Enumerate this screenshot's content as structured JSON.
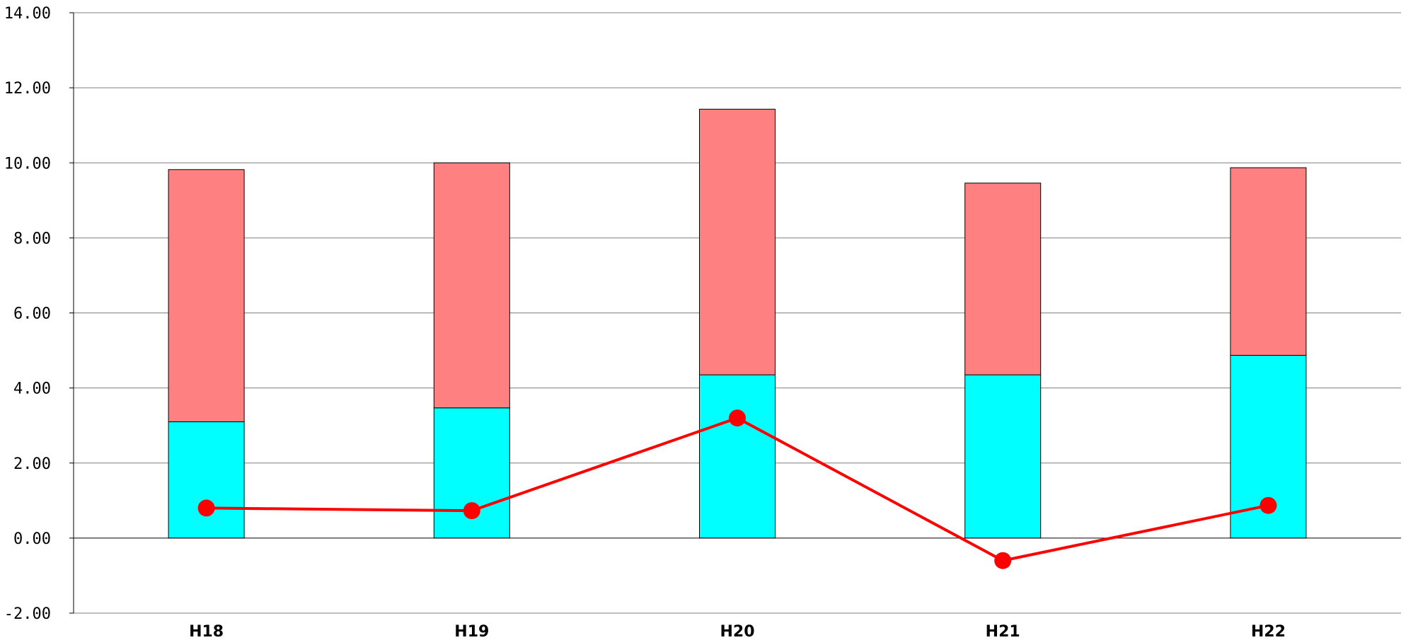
{
  "chart_data": {
    "type": "bar",
    "stacked": true,
    "categories": [
      "H18",
      "H19",
      "H20",
      "H21",
      "H22"
    ],
    "series": [
      {
        "kind": "bar",
        "color": "#00ffff",
        "values": [
          3.1,
          3.47,
          4.35,
          4.35,
          4.87
        ]
      },
      {
        "kind": "bar",
        "color": "#ff8080",
        "values": [
          6.72,
          6.53,
          7.08,
          5.11,
          5.0
        ]
      },
      {
        "kind": "line",
        "color": "#ff0000",
        "values": [
          0.8,
          0.73,
          3.2,
          -0.6,
          0.87
        ]
      }
    ],
    "ylim": [
      -2,
      14
    ],
    "ytick_labels": [
      "-2.00",
      "0.00",
      "2.00",
      "4.00",
      "6.00",
      "8.00",
      "10.00",
      "12.00",
      "14.00"
    ],
    "grid": true,
    "xlabel": "",
    "ylabel": "",
    "title": ""
  }
}
